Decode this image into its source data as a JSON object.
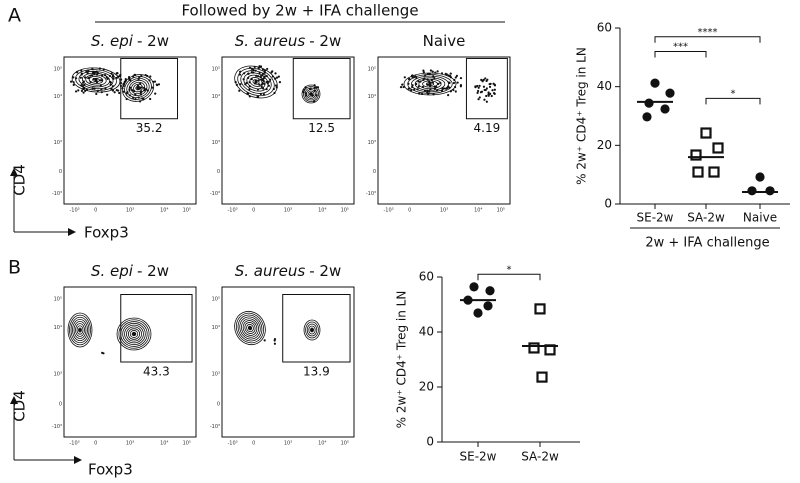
{
  "panel_labels": [
    "A",
    "B"
  ],
  "flow": {
    "header": "Followed by 2w + IFA challenge",
    "y_axis_label": "CD4",
    "x_axis_label": "Foxp3",
    "y_tick_labels": [
      "10⁵",
      "10⁴",
      "10³",
      "0",
      "-10³"
    ],
    "x_tick_labels": [
      "-10³",
      "0",
      "10³",
      "10⁴",
      "10⁵"
    ],
    "panel_a": [
      {
        "species": "S. epi",
        "suffix": "- 2w",
        "gate_value": 35.2
      },
      {
        "species": "S. aureus",
        "suffix": "- 2w",
        "gate_value": 12.5
      },
      {
        "title": "Naive",
        "gate_value": 4.19
      }
    ],
    "panel_b": [
      {
        "species": "S. epi",
        "suffix": "- 2w",
        "gate_value": 43.3
      },
      {
        "species": "S. aureus",
        "suffix": "- 2w",
        "gate_value": 13.9
      }
    ]
  },
  "chart_data": [
    {
      "type": "dotplot",
      "y_label": "% 2w⁺ CD4⁺ Treg in LN",
      "group_label": "2w + IFA challenge",
      "categories": [
        "SE-2w",
        "SA-2w",
        "Naive"
      ],
      "values": [
        [
          41.2,
          37.8,
          34.4,
          32.4,
          29.7
        ],
        [
          24.2,
          19.1,
          16.7,
          10.9,
          10.9
        ],
        [
          9.2,
          4.5,
          4.5
        ]
      ],
      "lines": [
        34.8,
        16.0,
        4.1
      ],
      "markers": [
        "circle",
        "square",
        "circle"
      ],
      "ylim": [
        0,
        60
      ],
      "yticks": [
        0,
        20,
        40,
        60
      ],
      "significance": [
        {
          "from": 0,
          "to": 1,
          "label": "***"
        },
        {
          "from": 0,
          "to": 2,
          "label": "****"
        },
        {
          "from": 1,
          "to": 2,
          "label": "*"
        }
      ]
    },
    {
      "type": "dotplot",
      "y_label": "% 2w⁺ CD4⁺ Treg in LN",
      "categories": [
        "SE-2w",
        "SA-2w"
      ],
      "values": [
        [
          56.4,
          55.0,
          51.6,
          49.5,
          46.9
        ],
        [
          48.4,
          34.2,
          33.5,
          23.6
        ]
      ],
      "lines": [
        51.6,
        34.9
      ],
      "markers": [
        "circle",
        "square"
      ],
      "ylim": [
        0,
        60
      ],
      "yticks": [
        0,
        20,
        40,
        60
      ],
      "significance": [
        {
          "from": 0,
          "to": 1,
          "label": "*"
        }
      ]
    }
  ]
}
